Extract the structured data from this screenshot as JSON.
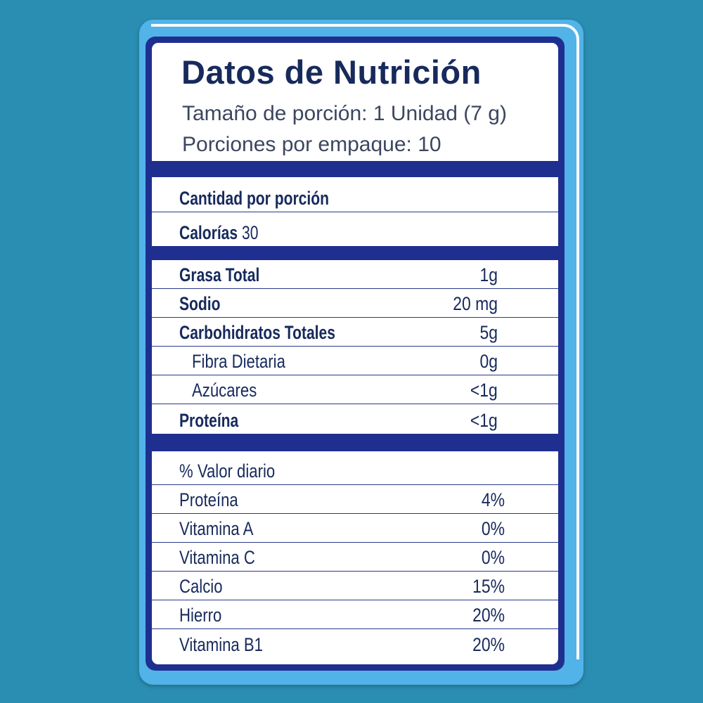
{
  "title": "Datos de Nutrición",
  "serving_size": "Tamaño de porción: 1 Unidad (7 g)",
  "servings_per_package": "Porciones por empaque: 10",
  "amount_per_serving_label": "Cantidad por porción",
  "calories": {
    "label": "Calorías",
    "value": "30"
  },
  "nutrients": [
    {
      "name": "Grasa Total",
      "value": "1g"
    },
    {
      "name": "Sodio",
      "value": "20 mg"
    },
    {
      "name": "Carbohidratos Totales",
      "value": "5g"
    },
    {
      "name": "Fibra Dietaria",
      "value": "0g"
    },
    {
      "name": "Azúcares",
      "value": "<1g"
    },
    {
      "name": "Proteína",
      "value": "<1g"
    }
  ],
  "daily_value_label": "% Valor diario",
  "daily_values": [
    {
      "name": "Proteína",
      "value": "4%"
    },
    {
      "name": "Vitamina A",
      "value": "0%"
    },
    {
      "name": "Vitamina C",
      "value": "0%"
    },
    {
      "name": "Calcio",
      "value": "15%"
    },
    {
      "name": "Hierro",
      "value": "20%"
    },
    {
      "name": "Vitamina B1",
      "value": "20%"
    }
  ],
  "colors": {
    "background": "#2a8db2",
    "frame": "#52b3e8",
    "label_border": "#1f2f8f",
    "text": "#172a5c"
  }
}
